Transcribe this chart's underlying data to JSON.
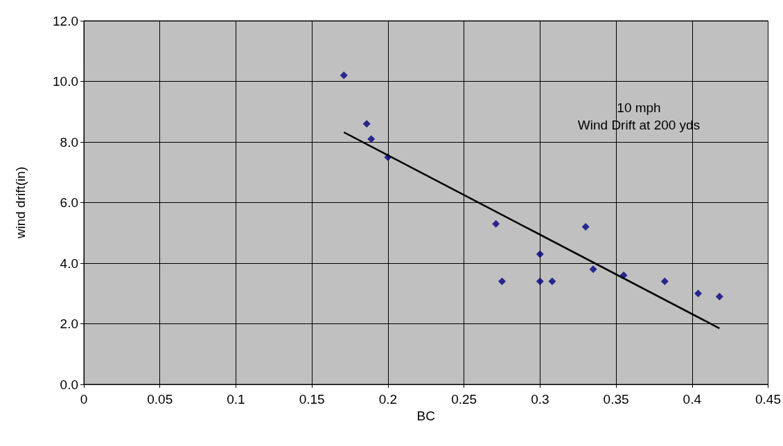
{
  "chart_data": {
    "type": "scatter",
    "xlabel": "BC",
    "ylabel": "wind drift(in)",
    "annotations": [
      "10 mph\nWind Drift at 200 yds"
    ],
    "series": [
      {
        "type": "scatter",
        "color": "#000080",
        "x": [
          0.171,
          0.186,
          0.189,
          0.2,
          0.271,
          0.275,
          0.3,
          0.3,
          0.308,
          0.33,
          0.335,
          0.355,
          0.382,
          0.404,
          0.418
        ],
        "values": [
          10.2,
          8.6,
          8.1,
          7.5,
          5.3,
          3.4,
          4.3,
          3.4,
          3.4,
          5.2,
          3.8,
          3.6,
          3.4,
          3.0,
          2.9
        ]
      },
      {
        "type": "line",
        "color": "#000000",
        "marker": "none",
        "x": [
          0.171,
          0.418
        ],
        "values": [
          8.32,
          1.85
        ]
      }
    ],
    "xlim": [
      0,
      0.45
    ],
    "xticks": [
      0,
      0.05,
      0.1,
      0.15,
      0.2,
      0.25,
      0.3,
      0.35,
      0.4,
      0.45
    ],
    "ylim": [
      0,
      12
    ],
    "yticks": [
      {
        "value": 0,
        "label": "0.0"
      },
      {
        "value": 2,
        "label": "2.0"
      },
      {
        "value": 4,
        "label": "4.0"
      },
      {
        "value": 6,
        "label": "6.0"
      },
      {
        "value": 8,
        "label": "8.0"
      },
      {
        "value": 10,
        "label": "10.0"
      },
      {
        "value": 12,
        "label": "12.0"
      }
    ],
    "grid": true,
    "marker": "diamond"
  }
}
